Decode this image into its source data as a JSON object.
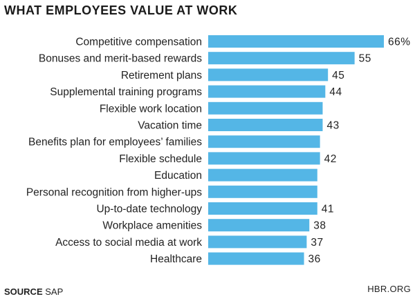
{
  "title": "WHAT EMPLOYEES VALUE AT WORK",
  "footer": {
    "source_key": "SOURCE",
    "source_value": "SAP",
    "brand": "HBR.ORG"
  },
  "colors": {
    "bar": "#54b6e6",
    "text": "#222222"
  },
  "chart_data": {
    "type": "bar",
    "orientation": "horizontal",
    "title": "WHAT EMPLOYEES VALUE AT WORK",
    "unit": "%",
    "categories": [
      "Competitive compensation",
      "Bonuses and merit-based rewards",
      "Retirement plans",
      "Supplemental training programs",
      "Flexible work location",
      "Vacation time",
      "Benefits plan for employees’ families",
      "Flexible schedule",
      "Education",
      "Personal recognition from higher-ups",
      "Up-to-date technology",
      "Workplace amenities",
      "Access to social media at work",
      "Healthcare"
    ],
    "values": [
      66,
      55,
      45,
      44,
      43,
      43,
      42,
      42,
      41,
      41,
      41,
      38,
      37,
      36
    ],
    "value_labels": [
      "66%",
      "55",
      "45",
      "44",
      "",
      "43",
      "",
      "42",
      "",
      "",
      "41",
      "38",
      "37",
      "36"
    ],
    "grid": false,
    "xlim": [
      0,
      66
    ]
  }
}
